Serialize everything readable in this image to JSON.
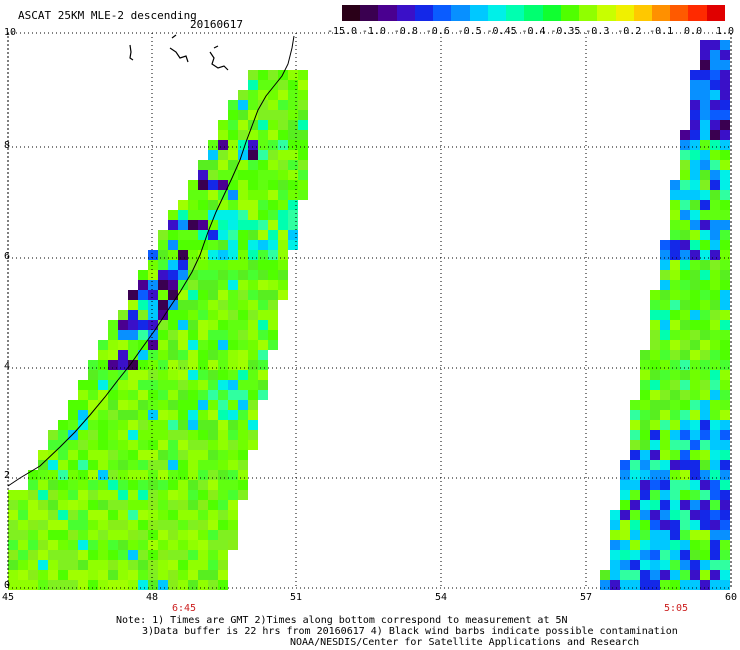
{
  "header": {
    "title": "ASCAT 25KM MLE-2 descending",
    "date": "20160617"
  },
  "colorbar": {
    "labels": [
      "-15.0",
      "-1.0",
      "-0.8",
      "-0.6",
      "-0.5",
      "-0.45",
      "-0.4",
      "-0.35",
      "-0.3",
      "-0.2",
      "-0.1",
      "0.0",
      "1.0"
    ],
    "colors": [
      "#2a0018",
      "#3a0050",
      "#4a0090",
      "#3a10c8",
      "#1428e8",
      "#0a5cff",
      "#0890ff",
      "#00c8ff",
      "#00f0e8",
      "#00ffb0",
      "#00ff70",
      "#10ff30",
      "#50ff00",
      "#90ff00",
      "#c8ff00",
      "#f0f000",
      "#ffc800",
      "#ff9000",
      "#ff5a00",
      "#ff2a00",
      "#e00000"
    ]
  },
  "map_axes": {
    "x_ticks": [
      "45",
      "48",
      "51",
      "54",
      "57",
      "60"
    ],
    "y_ticks": [
      "0",
      "2",
      "4",
      "6",
      "8",
      "10"
    ]
  },
  "times": {
    "left": "6:45",
    "right": "5:05"
  },
  "notes": {
    "line1": "Note: 1) Times are GMT 2)Times along bottom correspond to measurement at 5N",
    "line2": "3)Data buffer is 22 hrs from 20160617 4) Black wind barbs indicate possible contamination",
    "line3": "NOAA/NESDIS/Center for Satellite Applications and Research"
  }
}
